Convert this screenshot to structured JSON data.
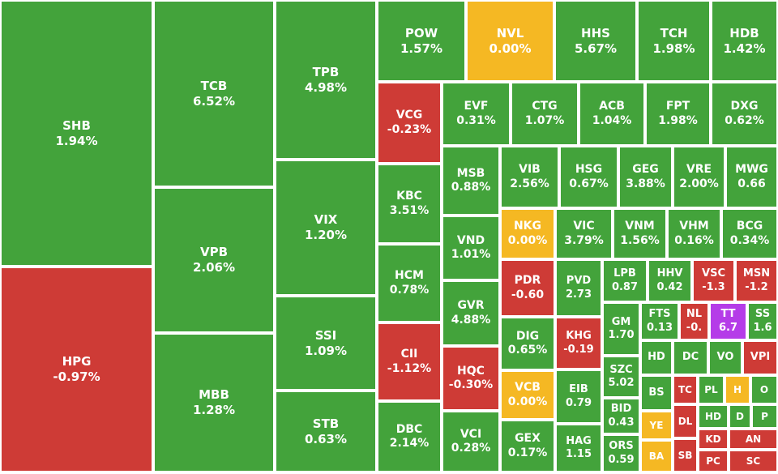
{
  "colors": {
    "up": "#43A33B",
    "down": "#CE3B36",
    "flat": "#F5B823",
    "ceiling": "#B53CE8"
  },
  "chart_data": {
    "type": "treemap",
    "cells": [
      {
        "ticker": "SHB",
        "change": "1.94%",
        "status": "up"
      },
      {
        "ticker": "HPG",
        "change": "-0.97%",
        "status": "down"
      },
      {
        "ticker": "TCB",
        "change": "6.52%",
        "status": "up"
      },
      {
        "ticker": "VPB",
        "change": "2.06%",
        "status": "up"
      },
      {
        "ticker": "MBB",
        "change": "1.28%",
        "status": "up"
      },
      {
        "ticker": "TPB",
        "change": "4.98%",
        "status": "up"
      },
      {
        "ticker": "VIX",
        "change": "1.20%",
        "status": "up"
      },
      {
        "ticker": "SSI",
        "change": "1.09%",
        "status": "up"
      },
      {
        "ticker": "STB",
        "change": "0.63%",
        "status": "up"
      },
      {
        "ticker": "POW",
        "change": "1.57%",
        "status": "up"
      },
      {
        "ticker": "NVL",
        "change": "0.00%",
        "status": "flat"
      },
      {
        "ticker": "HHS",
        "change": "5.67%",
        "status": "up"
      },
      {
        "ticker": "TCH",
        "change": "1.98%",
        "status": "up"
      },
      {
        "ticker": "HDB",
        "change": "1.42%",
        "status": "up"
      },
      {
        "ticker": "VCG",
        "change": "-0.23%",
        "status": "down"
      },
      {
        "ticker": "EVF",
        "change": "0.31%",
        "status": "up"
      },
      {
        "ticker": "CTG",
        "change": "1.07%",
        "status": "up"
      },
      {
        "ticker": "ACB",
        "change": "1.04%",
        "status": "up"
      },
      {
        "ticker": "FPT",
        "change": "1.98%",
        "status": "up"
      },
      {
        "ticker": "DXG",
        "change": "0.62%",
        "status": "up"
      },
      {
        "ticker": "KBC",
        "change": "3.51%",
        "status": "up"
      },
      {
        "ticker": "HCM",
        "change": "0.78%",
        "status": "up"
      },
      {
        "ticker": "CII",
        "change": "-1.12%",
        "status": "down"
      },
      {
        "ticker": "DBC",
        "change": "2.14%",
        "status": "up"
      },
      {
        "ticker": "MSB",
        "change": "0.88%",
        "status": "up"
      },
      {
        "ticker": "VND",
        "change": "1.01%",
        "status": "up"
      },
      {
        "ticker": "GVR",
        "change": "4.88%",
        "status": "up"
      },
      {
        "ticker": "HQC",
        "change": "-0.30%",
        "status": "down"
      },
      {
        "ticker": "VCI",
        "change": "0.28%",
        "status": "up"
      },
      {
        "ticker": "VIB",
        "change": "2.56%",
        "status": "up"
      },
      {
        "ticker": "HSG",
        "change": "0.67%",
        "status": "up"
      },
      {
        "ticker": "GEG",
        "change": "3.88%",
        "status": "up"
      },
      {
        "ticker": "VRE",
        "change": "2.00%",
        "status": "up"
      },
      {
        "ticker": "MWG",
        "change": "0.66",
        "status": "up"
      },
      {
        "ticker": "NKG",
        "change": "0.00%",
        "status": "flat"
      },
      {
        "ticker": "VIC",
        "change": "3.79%",
        "status": "up"
      },
      {
        "ticker": "VNM",
        "change": "1.56%",
        "status": "up"
      },
      {
        "ticker": "VHM",
        "change": "0.16%",
        "status": "up"
      },
      {
        "ticker": "BCG",
        "change": "0.34%",
        "status": "up"
      },
      {
        "ticker": "PDR",
        "change": "-0.60",
        "status": "down"
      },
      {
        "ticker": "PVD",
        "change": "2.73",
        "status": "up"
      },
      {
        "ticker": "LPB",
        "change": "0.87",
        "status": "up"
      },
      {
        "ticker": "HHV",
        "change": "0.42",
        "status": "up"
      },
      {
        "ticker": "VSC",
        "change": "-1.3",
        "status": "down"
      },
      {
        "ticker": "MSN",
        "change": "-1.2",
        "status": "down"
      },
      {
        "ticker": "DIG",
        "change": "0.65%",
        "status": "up"
      },
      {
        "ticker": "KHG",
        "change": "-0.19",
        "status": "down"
      },
      {
        "ticker": "GM",
        "change": "1.70",
        "status": "up"
      },
      {
        "ticker": "FTS",
        "change": "0.13",
        "status": "up"
      },
      {
        "ticker": "NL",
        "change": "-0.",
        "status": "down"
      },
      {
        "ticker": "TT",
        "change": "6.7",
        "status": "ceiling"
      },
      {
        "ticker": "SS",
        "change": "1.6",
        "status": "up"
      },
      {
        "ticker": "VCB",
        "change": "0.00%",
        "status": "flat"
      },
      {
        "ticker": "EIB",
        "change": "0.79",
        "status": "up"
      },
      {
        "ticker": "GEX",
        "change": "0.17%",
        "status": "up"
      },
      {
        "ticker": "HAG",
        "change": "1.15",
        "status": "up"
      },
      {
        "ticker": "SZC",
        "change": "5.02",
        "status": "up"
      },
      {
        "ticker": "BID",
        "change": "0.43",
        "status": "up"
      },
      {
        "ticker": "ORS",
        "change": "0.59",
        "status": "up"
      },
      {
        "ticker": "HD",
        "change": "",
        "status": "up"
      },
      {
        "ticker": "DC",
        "change": "",
        "status": "up"
      },
      {
        "ticker": "VO",
        "change": "",
        "status": "up"
      },
      {
        "ticker": "VPI",
        "change": "",
        "status": "down"
      },
      {
        "ticker": "BS",
        "change": "",
        "status": "up"
      },
      {
        "ticker": "TC",
        "change": "",
        "status": "down"
      },
      {
        "ticker": "PL",
        "change": "",
        "status": "up"
      },
      {
        "ticker": "H",
        "change": "",
        "status": "flat"
      },
      {
        "ticker": "O",
        "change": "",
        "status": "up"
      },
      {
        "ticker": "YE",
        "change": "",
        "status": "flat"
      },
      {
        "ticker": "DL",
        "change": "",
        "status": "down"
      },
      {
        "ticker": "HD",
        "change": "",
        "status": "up"
      },
      {
        "ticker": "D",
        "change": "",
        "status": "up"
      },
      {
        "ticker": "P",
        "change": "",
        "status": "up"
      },
      {
        "ticker": "KD",
        "change": "",
        "status": "down"
      },
      {
        "ticker": "AN",
        "change": "",
        "status": "down"
      },
      {
        "ticker": "BA",
        "change": "",
        "status": "flat"
      },
      {
        "ticker": "SB",
        "change": "",
        "status": "down"
      },
      {
        "ticker": "PC",
        "change": "",
        "status": "down"
      },
      {
        "ticker": "SC",
        "change": "",
        "status": "down"
      }
    ]
  }
}
